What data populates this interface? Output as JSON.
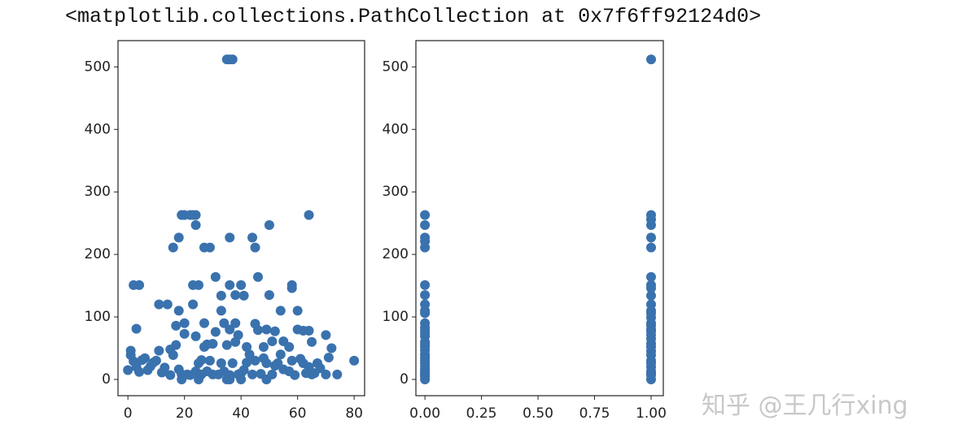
{
  "header": "<matplotlib.collections.PathCollection at 0x7f6ff92124d0>",
  "watermark": "知乎 @王几行xing",
  "chart_data": [
    {
      "type": "scatter",
      "color": "#3a72ae",
      "xlim": [
        -3.5,
        83.7
      ],
      "ylim": [
        -26,
        542
      ],
      "xticks": [
        0,
        20,
        40,
        60,
        80
      ],
      "yticks": [
        0,
        100,
        200,
        300,
        400,
        500
      ],
      "x": [
        35,
        36,
        37,
        20,
        19,
        23,
        24,
        22,
        64,
        24,
        50,
        36,
        44,
        18,
        16,
        45,
        27,
        29,
        31,
        46,
        2,
        4,
        25,
        23,
        36,
        40,
        58,
        58,
        38,
        50,
        33,
        41,
        23,
        11,
        14,
        18,
        33,
        54,
        60,
        20,
        45,
        27,
        38,
        17,
        3,
        36,
        49,
        60,
        62,
        64,
        52,
        70,
        39,
        24,
        55,
        65,
        30,
        72,
        17,
        35,
        42,
        48,
        57,
        71,
        80,
        74,
        70,
        66,
        62,
        0,
        1,
        1,
        2,
        5,
        8,
        9,
        11,
        13,
        15,
        19,
        21,
        22,
        24,
        25,
        26,
        28,
        29,
        30,
        32,
        33,
        34,
        36,
        37,
        39,
        40,
        41,
        42,
        44,
        45,
        47,
        49,
        51,
        53,
        55,
        57,
        59,
        61,
        63,
        65,
        67,
        3,
        6,
        12,
        16,
        18,
        20,
        27,
        31,
        34,
        38,
        43,
        46,
        51,
        26,
        28,
        35,
        40,
        25,
        19,
        49,
        36,
        15,
        10,
        7,
        4,
        48,
        52,
        58,
        64,
        68,
        54
      ],
      "values": [
        512,
        512,
        512,
        263,
        263,
        263,
        263,
        263,
        263,
        247,
        247,
        227,
        227,
        227,
        211,
        211,
        211,
        211,
        164,
        164,
        151,
        151,
        151,
        151,
        151,
        151,
        151,
        146,
        135,
        135,
        134,
        134,
        120,
        120,
        120,
        110,
        110,
        110,
        110,
        90,
        89,
        90,
        90,
        86,
        81,
        80,
        80,
        80,
        78,
        78,
        77,
        71,
        71,
        69,
        61,
        60,
        57,
        50,
        55,
        55,
        52,
        52,
        52,
        35,
        30,
        8,
        8,
        10,
        26,
        15,
        39,
        46,
        29,
        31,
        21,
        27,
        46,
        19,
        7,
        8,
        8,
        7,
        13,
        26,
        8,
        13,
        30,
        8,
        8,
        26,
        13,
        7,
        26,
        8,
        10,
        15,
        27,
        8,
        30,
        9,
        26,
        8,
        26,
        16,
        13,
        7,
        33,
        10,
        8,
        26,
        20,
        34,
        11,
        39,
        16,
        73,
        52,
        76,
        90,
        60,
        40,
        79,
        61,
        31,
        56,
        0,
        0,
        0,
        0,
        0,
        0,
        48,
        30,
        15,
        12,
        34,
        22,
        30,
        20,
        18,
        40
      ]
    },
    {
      "type": "scatter",
      "color": "#3a72ae",
      "xlim": [
        -0.04,
        1.054
      ],
      "ylim": [
        -26,
        542
      ],
      "xticks": [
        {
          "value": 0,
          "label": "0.00"
        },
        {
          "value": 0.25,
          "label": "0.25"
        },
        {
          "value": 0.5,
          "label": "0.50"
        },
        {
          "value": 0.75,
          "label": "0.75"
        },
        {
          "value": 1,
          "label": "1.00"
        }
      ],
      "yticks": [
        0,
        100,
        200,
        300,
        400,
        500
      ],
      "x": [
        0,
        0,
        0,
        0,
        0,
        0,
        0,
        0,
        0,
        0,
        0,
        0,
        0,
        0,
        0,
        0,
        0,
        0,
        0,
        0,
        0,
        0,
        0,
        0,
        0,
        0,
        0,
        0,
        0,
        0,
        1,
        1,
        1,
        1,
        1,
        1,
        1,
        1,
        1,
        1,
        1,
        1,
        1,
        1,
        1,
        1,
        1,
        1,
        1,
        1,
        1,
        1,
        1,
        1,
        1,
        1,
        1,
        1,
        1,
        1,
        1
      ],
      "values": [
        0,
        5,
        8,
        10,
        13,
        16,
        21,
        26,
        30,
        35,
        40,
        47,
        52,
        56,
        60,
        69,
        73,
        78,
        83,
        90,
        106,
        110,
        120,
        135,
        151,
        211,
        221,
        227,
        247,
        263,
        0,
        7,
        10,
        13,
        20,
        26,
        30,
        39,
        45,
        52,
        57,
        65,
        71,
        77,
        80,
        86,
        90,
        99,
        106,
        110,
        120,
        134,
        146,
        151,
        164,
        211,
        227,
        247,
        256,
        263,
        512
      ]
    }
  ]
}
